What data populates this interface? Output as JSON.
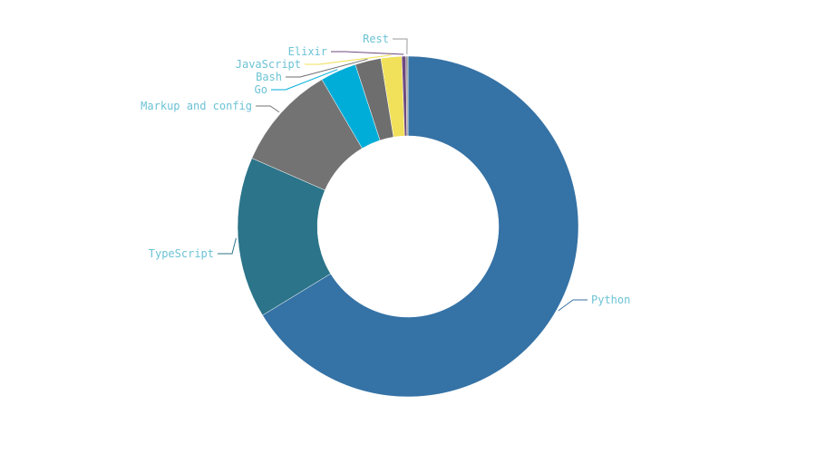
{
  "chart_data": {
    "type": "pie",
    "donut": true,
    "title": "",
    "slices": [
      {
        "label": "Python",
        "value": 67.6,
        "color": "#3572a5"
      },
      {
        "label": "TypeScript",
        "value": 15.6,
        "color": "#2b7489"
      },
      {
        "label": "Markup and config",
        "value": 10.2,
        "color": "#737373"
      },
      {
        "label": "Go",
        "value": 3.5,
        "color": "#00add8"
      },
      {
        "label": "Bash",
        "value": 2.5,
        "color": "#6e6e6e"
      },
      {
        "label": "JavaScript",
        "value": 2.0,
        "color": "#f1e05a"
      },
      {
        "label": "Elixir",
        "value": 0.4,
        "color": "#6e4a7e"
      },
      {
        "label": "Rest",
        "value": 0.2,
        "color": "#9a9a9a"
      }
    ]
  }
}
